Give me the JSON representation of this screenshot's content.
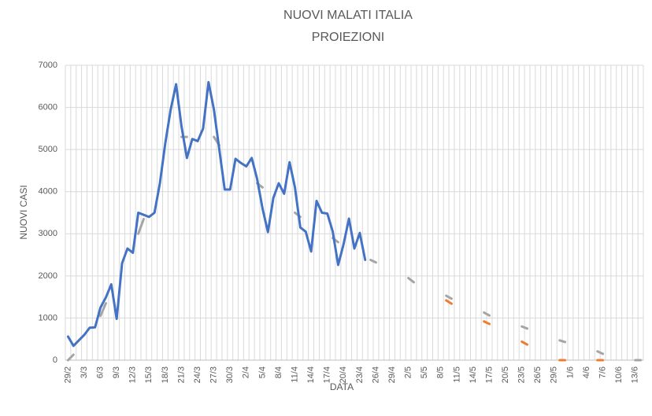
{
  "chart_data": {
    "type": "line",
    "title": "NUOVI MALATI ITALIA",
    "subtitle": "PROIEZIONI",
    "x_label": "DATA",
    "y_label": "NUOVI CASI",
    "categories": [
      "29/2",
      null,
      null,
      "3/3",
      null,
      null,
      "6/3",
      null,
      null,
      "9/3",
      null,
      null,
      "12/3",
      null,
      null,
      "15/3",
      null,
      null,
      "18/3",
      null,
      null,
      "21/3",
      null,
      null,
      "24/3",
      null,
      null,
      "27/3",
      null,
      null,
      "30/3",
      null,
      null,
      "2/4",
      null,
      null,
      "5/4",
      null,
      null,
      "8/4",
      null,
      null,
      "11/4",
      null,
      null,
      "14/4",
      null,
      null,
      "17/4",
      null,
      null,
      "20/4",
      null,
      null,
      "23/4",
      null,
      null,
      "26/4",
      null,
      null,
      "29/4",
      null,
      null,
      "2/5",
      null,
      null,
      "5/5",
      null,
      null,
      "8/5",
      null,
      null,
      "11/5",
      null,
      null,
      "14/5",
      null,
      null,
      "17/5",
      null,
      null,
      "20/5",
      null,
      null,
      "23/5",
      null,
      null,
      "26/5",
      null,
      null,
      "29/5",
      null,
      null,
      "1/6",
      null,
      null,
      "4/6",
      null,
      null,
      "7/6",
      null,
      null,
      "10/6",
      null,
      null,
      "13/6",
      null
    ],
    "series": [
      {
        "color": "#a5a5a5",
        "values": [
          0,
          130,
          null,
          null,
          null,
          null,
          1050,
          1350,
          null,
          null,
          null,
          null,
          null,
          3000,
          3350,
          null,
          null,
          null,
          null,
          null,
          null,
          5300,
          5300,
          null,
          null,
          null,
          null,
          5300,
          5100,
          null,
          null,
          null,
          null,
          null,
          null,
          4200,
          4100,
          null,
          null,
          null,
          null,
          null,
          3500,
          3400,
          null,
          null,
          null,
          null,
          null,
          2900,
          2800,
          null,
          null,
          null,
          null,
          null,
          2380,
          2320,
          null,
          null,
          null,
          null,
          null,
          1950,
          1850,
          null,
          null,
          null,
          null,
          null,
          1530,
          1460,
          null,
          null,
          null,
          null,
          null,
          1130,
          1060,
          null,
          null,
          null,
          null,
          null,
          800,
          750,
          null,
          null,
          null,
          null,
          null,
          470,
          430,
          null,
          null,
          null,
          null,
          null,
          210,
          150,
          null,
          null,
          null,
          null,
          null,
          0,
          0
        ]
      },
      {
        "color": "#ed7d31",
        "values": [
          null,
          null,
          null,
          null,
          null,
          null,
          null,
          null,
          null,
          null,
          null,
          null,
          null,
          null,
          null,
          null,
          null,
          null,
          null,
          null,
          null,
          null,
          null,
          null,
          null,
          null,
          null,
          null,
          null,
          null,
          null,
          null,
          null,
          null,
          null,
          null,
          null,
          null,
          null,
          null,
          null,
          null,
          null,
          null,
          null,
          null,
          null,
          null,
          null,
          null,
          null,
          null,
          null,
          null,
          null,
          null,
          null,
          null,
          null,
          null,
          null,
          null,
          null,
          null,
          null,
          null,
          null,
          null,
          null,
          null,
          1420,
          1340,
          null,
          null,
          null,
          null,
          null,
          920,
          860,
          null,
          null,
          null,
          null,
          null,
          440,
          370,
          null,
          null,
          null,
          null,
          null,
          0,
          0,
          null,
          null,
          null,
          null,
          null,
          0,
          0,
          null,
          null,
          null,
          null,
          null,
          null,
          null
        ]
      },
      {
        "color": "#4472c4",
        "values": [
          560,
          340,
          470,
          600,
          770,
          780,
          1250,
          1490,
          1800,
          980,
          2300,
          2650,
          2550,
          3500,
          3450,
          3400,
          3500,
          4200,
          5150,
          5950,
          6550,
          5550,
          4800,
          5250,
          5200,
          5500,
          6600,
          5950,
          5000,
          4050,
          4050,
          4780,
          4680,
          4600,
          4800,
          4300,
          3600,
          3040,
          3850,
          4200,
          3950,
          4700,
          4100,
          3150,
          3050,
          2580,
          3780,
          3500,
          3480,
          3050,
          2260,
          2750,
          3360,
          2650,
          3020,
          2380,
          null,
          null,
          null,
          null,
          null,
          null,
          null,
          null,
          null,
          null,
          null,
          null,
          null,
          null,
          null,
          null,
          null,
          null,
          null,
          null,
          null,
          null,
          null,
          null,
          null,
          null,
          null,
          null,
          null,
          null,
          null,
          null,
          null,
          null,
          null,
          null,
          null,
          null,
          null,
          null,
          null,
          null,
          null,
          null,
          null,
          null,
          null,
          null,
          null,
          null,
          null
        ]
      }
    ],
    "ylim": [
      0,
      7000
    ],
    "yticks": [
      0,
      1000,
      2000,
      3000,
      4000,
      5000,
      6000,
      7000
    ],
    "grid": true
  }
}
